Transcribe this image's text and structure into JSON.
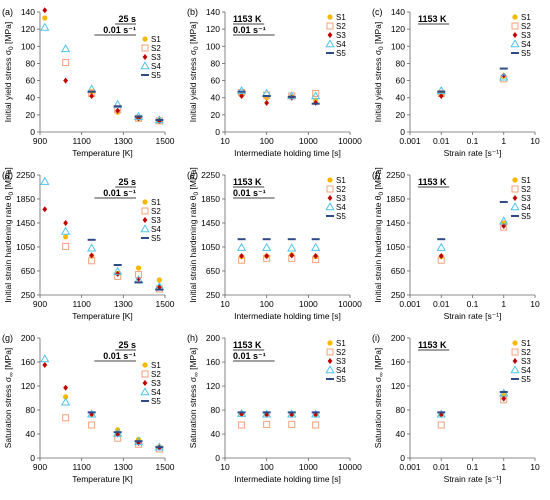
{
  "styles": {
    "S1": {
      "marker": "circle",
      "color": "#F5B800"
    },
    "S2": {
      "marker": "square",
      "color": "#F0A27A"
    },
    "S3": {
      "marker": "diamond",
      "color": "#C00000"
    },
    "S4": {
      "marker": "triangle",
      "color": "#4FC3E8"
    },
    "S5": {
      "marker": "dash",
      "color": "#2E4A87"
    }
  },
  "chart_data": [
    {
      "panel": "(a)",
      "type": "scatter",
      "xlabel": "Temperature [K]",
      "ylabel": "Initial yield stress σ0 [MPa]",
      "xlim": [
        900,
        1500
      ],
      "ylim": [
        0,
        140
      ],
      "xscale": "linear",
      "xticks": [
        900,
        1100,
        1300,
        1500
      ],
      "yticks": [
        0,
        20,
        40,
        60,
        80,
        100,
        120,
        140
      ],
      "condition": [
        "25 s",
        "0.01 s⁻¹"
      ],
      "legend": [
        "S1",
        "S2",
        "S3",
        "S4",
        "S5"
      ],
      "series": [
        {
          "name": "S1",
          "x": [
            923,
            1148,
            1273,
            1373,
            1473
          ],
          "y": [
            133,
            47,
            23,
            16,
            13
          ]
        },
        {
          "name": "S2",
          "x": [
            1023,
            1148,
            1273,
            1373,
            1473
          ],
          "y": [
            81,
            45,
            26,
            16,
            13
          ]
        },
        {
          "name": "S3",
          "x": [
            923,
            1023,
            1148,
            1273,
            1373,
            1473
          ],
          "y": [
            142,
            60,
            42,
            25,
            16,
            13
          ]
        },
        {
          "name": "S4",
          "x": [
            923,
            1023,
            1148,
            1273,
            1373,
            1473
          ],
          "y": [
            122,
            97,
            50,
            32,
            18,
            14
          ]
        },
        {
          "name": "S5",
          "x": [
            1148,
            1273,
            1373,
            1473
          ],
          "y": [
            47,
            30,
            18,
            14
          ]
        }
      ]
    },
    {
      "panel": "(b)",
      "type": "scatter",
      "xlabel": "Intermediate holding time [s]",
      "ylabel": "Initial yield stress σ0 [MPa]",
      "xlim": [
        10,
        10000
      ],
      "ylim": [
        0,
        140
      ],
      "xscale": "log",
      "xticks": [
        10,
        100,
        1000,
        10000
      ],
      "yticks": [
        0,
        20,
        40,
        60,
        80,
        100,
        120,
        140
      ],
      "condition": [
        "1153 K",
        "0.01 s⁻¹"
      ],
      "legend": [
        "S1",
        "S2",
        "S3",
        "S4",
        "S5"
      ],
      "series": [
        {
          "name": "S1",
          "x": [
            25,
            100,
            400,
            1500
          ],
          "y": [
            43,
            40,
            41,
            37
          ]
        },
        {
          "name": "S2",
          "x": [
            25,
            100,
            400,
            1500
          ],
          "y": [
            46,
            43,
            42,
            45
          ]
        },
        {
          "name": "S3",
          "x": [
            25,
            100,
            400,
            1500
          ],
          "y": [
            42,
            34,
            40,
            34
          ]
        },
        {
          "name": "S4",
          "x": [
            25,
            100,
            400,
            1500
          ],
          "y": [
            48,
            45,
            42,
            42
          ]
        },
        {
          "name": "S5",
          "x": [
            25,
            100,
            400,
            1500
          ],
          "y": [
            47,
            42,
            41,
            33
          ]
        }
      ]
    },
    {
      "panel": "(c)",
      "type": "scatter",
      "xlabel": "Strain rate [s⁻¹]",
      "ylabel": "Initial yield stress σ0 [MPa]",
      "xlim": [
        0.001,
        10
      ],
      "ylim": [
        0,
        140
      ],
      "xscale": "log",
      "xticks": [
        0.001,
        0.01,
        0.1,
        1,
        10
      ],
      "yticks": [
        0,
        20,
        40,
        60,
        80,
        100,
        120,
        140
      ],
      "condition": [
        "1153 K"
      ],
      "legend": [
        "S1",
        "S2",
        "S3",
        "S4",
        "S5"
      ],
      "series": [
        {
          "name": "S1",
          "x": [
            0.01,
            1
          ],
          "y": [
            44,
            65
          ]
        },
        {
          "name": "S2",
          "x": [
            0.01,
            1
          ],
          "y": [
            45,
            62
          ]
        },
        {
          "name": "S3",
          "x": [
            0.01,
            1
          ],
          "y": [
            42,
            66
          ]
        },
        {
          "name": "S4",
          "x": [
            0.01,
            1
          ],
          "y": [
            48,
            64
          ]
        },
        {
          "name": "S5",
          "x": [
            0.01,
            1
          ],
          "y": [
            47,
            74
          ]
        }
      ]
    },
    {
      "panel": "(d)",
      "type": "scatter",
      "xlabel": "Temperature [K]",
      "ylabel": "Initial strain hardening rate θ0 [MPa]",
      "xlim": [
        900,
        1500
      ],
      "ylim": [
        250,
        2250
      ],
      "xscale": "linear",
      "xticks": [
        900,
        1100,
        1300,
        1500
      ],
      "yticks": [
        250,
        650,
        1050,
        1450,
        1850,
        2250
      ],
      "condition": [
        "25 s",
        "0.01 s⁻¹"
      ],
      "legend": [
        "S1",
        "S2",
        "S3",
        "S4",
        "S5"
      ],
      "series": [
        {
          "name": "S1",
          "x": [
            1023,
            1148,
            1273,
            1373,
            1473
          ],
          "y": [
            1220,
            900,
            610,
            700,
            500
          ]
        },
        {
          "name": "S2",
          "x": [
            1023,
            1148,
            1273,
            1373,
            1473
          ],
          "y": [
            1060,
            820,
            560,
            590,
            350
          ]
        },
        {
          "name": "S3",
          "x": [
            923,
            1023,
            1148,
            1273,
            1373,
            1473
          ],
          "y": [
            1680,
            1450,
            910,
            600,
            520,
            380
          ]
        },
        {
          "name": "S4",
          "x": [
            923,
            1023,
            1148,
            1273,
            1373,
            1473
          ],
          "y": [
            2140,
            1310,
            1030,
            640,
            500,
            390
          ]
        },
        {
          "name": "S5",
          "x": [
            1148,
            1273,
            1373,
            1473
          ],
          "y": [
            1170,
            750,
            460,
            340
          ]
        }
      ]
    },
    {
      "panel": "(e)",
      "type": "scatter",
      "xlabel": "Intermediate holding time [s]",
      "ylabel": "Initial strain hardening rate θ0 [MPa]",
      "xlim": [
        10,
        10000
      ],
      "ylim": [
        250,
        2250
      ],
      "xscale": "log",
      "xticks": [
        10,
        100,
        1000,
        10000
      ],
      "yticks": [
        250,
        650,
        1050,
        1450,
        1850,
        2250
      ],
      "condition": [
        "1153 K",
        "0.01 s⁻¹"
      ],
      "legend": [
        "S1",
        "S2",
        "S3",
        "S4",
        "S5"
      ],
      "series": [
        {
          "name": "S1",
          "x": [
            25,
            100,
            400,
            1500
          ],
          "y": [
            890,
            900,
            920,
            890
          ]
        },
        {
          "name": "S2",
          "x": [
            25,
            100,
            400,
            1500
          ],
          "y": [
            830,
            860,
            860,
            840
          ]
        },
        {
          "name": "S3",
          "x": [
            25,
            100,
            400,
            1500
          ],
          "y": [
            900,
            900,
            910,
            900
          ]
        },
        {
          "name": "S4",
          "x": [
            25,
            100,
            400,
            1500
          ],
          "y": [
            1040,
            1040,
            1030,
            1040
          ]
        },
        {
          "name": "S5",
          "x": [
            25,
            100,
            400,
            1500
          ],
          "y": [
            1180,
            1180,
            1180,
            1180
          ]
        }
      ]
    },
    {
      "panel": "(f)",
      "type": "scatter",
      "xlabel": "Strain rate [s⁻¹]",
      "ylabel": "Initial strain hardening rate θ0 [MPa]",
      "xlim": [
        0.001,
        10
      ],
      "ylim": [
        250,
        2250
      ],
      "xscale": "log",
      "xticks": [
        0.001,
        0.01,
        0.1,
        1,
        10
      ],
      "yticks": [
        250,
        650,
        1050,
        1450,
        1850,
        2250
      ],
      "condition": [
        "1153 K"
      ],
      "legend": [
        "S1",
        "S2",
        "S3",
        "S4",
        "S5"
      ],
      "series": [
        {
          "name": "S1",
          "x": [
            0.01,
            1
          ],
          "y": [
            890,
            1450
          ]
        },
        {
          "name": "S2",
          "x": [
            0.01,
            1
          ],
          "y": [
            830,
            1380
          ]
        },
        {
          "name": "S3",
          "x": [
            0.01,
            1
          ],
          "y": [
            900,
            1400
          ]
        },
        {
          "name": "S4",
          "x": [
            0.01,
            1
          ],
          "y": [
            1040,
            1480
          ]
        },
        {
          "name": "S5",
          "x": [
            0.01,
            1
          ],
          "y": [
            1180,
            1800
          ]
        }
      ]
    },
    {
      "panel": "(g)",
      "type": "scatter",
      "xlabel": "Temperature [K]",
      "ylabel": "Saturation stress σ∞ [MPa]",
      "xlim": [
        900,
        1500
      ],
      "ylim": [
        0,
        200
      ],
      "xscale": "linear",
      "xticks": [
        900,
        1100,
        1300,
        1500
      ],
      "yticks": [
        0,
        40,
        80,
        120,
        160,
        200
      ],
      "condition": [
        "25 s",
        "0.01 s⁻¹"
      ],
      "legend": [
        "S1",
        "S2",
        "S3",
        "S4",
        "S5"
      ],
      "series": [
        {
          "name": "S1",
          "x": [
            1023,
            1148,
            1273,
            1373,
            1473
          ],
          "y": [
            102,
            73,
            47,
            31,
            19
          ]
        },
        {
          "name": "S2",
          "x": [
            1023,
            1148,
            1273,
            1373,
            1473
          ],
          "y": [
            67,
            55,
            33,
            23,
            15
          ]
        },
        {
          "name": "S3",
          "x": [
            923,
            1023,
            1148,
            1273,
            1373,
            1473
          ],
          "y": [
            155,
            117,
            73,
            39,
            25,
            17
          ]
        },
        {
          "name": "S4",
          "x": [
            923,
            1023,
            1148,
            1273,
            1373,
            1473
          ],
          "y": [
            165,
            93,
            73,
            41,
            27,
            18
          ]
        },
        {
          "name": "S5",
          "x": [
            1148,
            1273,
            1373,
            1473
          ],
          "y": [
            76,
            43,
            28,
            18
          ]
        }
      ]
    },
    {
      "panel": "(h)",
      "type": "scatter",
      "xlabel": "Intermediate holding time [s]",
      "ylabel": "Saturation stress σ∞ [MPa]",
      "xlim": [
        10,
        10000
      ],
      "ylim": [
        0,
        200
      ],
      "xscale": "log",
      "xticks": [
        10,
        100,
        1000,
        10000
      ],
      "yticks": [
        0,
        40,
        80,
        120,
        160,
        200
      ],
      "condition": [
        "1153 K",
        "0.01 s⁻¹"
      ],
      "legend": [
        "S1",
        "S2",
        "S3",
        "S4",
        "S5"
      ],
      "series": [
        {
          "name": "S1",
          "x": [
            25,
            100,
            400,
            1500
          ],
          "y": [
            74,
            73,
            73,
            73
          ]
        },
        {
          "name": "S2",
          "x": [
            25,
            100,
            400,
            1500
          ],
          "y": [
            55,
            56,
            56,
            55
          ]
        },
        {
          "name": "S3",
          "x": [
            25,
            100,
            400,
            1500
          ],
          "y": [
            73,
            72,
            72,
            72
          ]
        },
        {
          "name": "S4",
          "x": [
            25,
            100,
            400,
            1500
          ],
          "y": [
            74,
            73,
            73,
            73
          ]
        },
        {
          "name": "S5",
          "x": [
            25,
            100,
            400,
            1500
          ],
          "y": [
            76,
            76,
            76,
            76
          ]
        }
      ]
    },
    {
      "panel": "(i)",
      "type": "scatter",
      "xlabel": "Strain rate [s⁻¹]",
      "ylabel": "Saturation stress σ∞ [MPa]",
      "xlim": [
        0.001,
        10
      ],
      "ylim": [
        0,
        200
      ],
      "xscale": "log",
      "xticks": [
        0.001,
        0.01,
        0.1,
        1,
        10
      ],
      "yticks": [
        0,
        40,
        80,
        120,
        160,
        200
      ],
      "condition": [
        "1153 K"
      ],
      "legend": [
        "S1",
        "S2",
        "S3",
        "S4",
        "S5"
      ],
      "series": [
        {
          "name": "S1",
          "x": [
            0.01,
            1
          ],
          "y": [
            73,
            104
          ]
        },
        {
          "name": "S2",
          "x": [
            0.01,
            1
          ],
          "y": [
            55,
            97
          ]
        },
        {
          "name": "S3",
          "x": [
            0.01,
            1
          ],
          "y": [
            72,
            99
          ]
        },
        {
          "name": "S4",
          "x": [
            0.01,
            1
          ],
          "y": [
            73,
            108
          ]
        },
        {
          "name": "S5",
          "x": [
            0.01,
            1
          ],
          "y": [
            76,
            110
          ]
        }
      ]
    }
  ]
}
